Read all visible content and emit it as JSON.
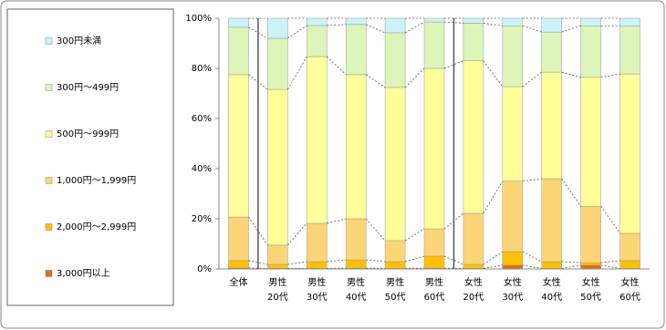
{
  "chart_data": {
    "type": "stacked_bar_100",
    "categories": [
      [
        "全体"
      ],
      [
        "男性",
        "20代"
      ],
      [
        "男性",
        "30代"
      ],
      [
        "男性",
        "40代"
      ],
      [
        "男性",
        "50代"
      ],
      [
        "男性",
        "60代"
      ],
      [
        "女性",
        "20代"
      ],
      [
        "女性",
        "30代"
      ],
      [
        "女性",
        "40代"
      ],
      [
        "女性",
        "50代"
      ],
      [
        "女性",
        "60代"
      ]
    ],
    "series": [
      {
        "name": "3,000円以上",
        "color": "#e46c0a",
        "values": [
          0.4,
          0.2,
          0.2,
          0.3,
          0.2,
          0.3,
          0.2,
          1.5,
          0.2,
          1.5,
          0.2
        ]
      },
      {
        "name": "2,000円～2,999円",
        "color": "#ffc000",
        "values": [
          2.9,
          1.6,
          2.7,
          3.3,
          2.7,
          4.8,
          1.6,
          5.4,
          2.7,
          1.0,
          3.1
        ]
      },
      {
        "name": "1,000円～1,999円",
        "color": "#fcd576",
        "values": [
          17.4,
          7.7,
          15.3,
          16.4,
          8.4,
          10.9,
          20.4,
          28.1,
          33.1,
          22.5,
          10.9
        ]
      },
      {
        "name": "500円～999円",
        "color": "#ffff99",
        "values": [
          56.8,
          62.1,
          66.5,
          57.5,
          61.1,
          64.0,
          60.8,
          37.7,
          42.5,
          51.4,
          63.6
        ]
      },
      {
        "name": "300円～499円",
        "color": "#ddf5b8",
        "values": [
          18.9,
          20.4,
          12.4,
          20.0,
          21.8,
          18.5,
          15.0,
          24.3,
          16.0,
          20.6,
          19.2
        ]
      },
      {
        "name": "300円未満",
        "color": "#ccf2fa",
        "values": [
          3.6,
          8.0,
          2.9,
          2.5,
          5.8,
          1.5,
          2.0,
          3.0,
          5.5,
          3.0,
          3.0
        ]
      }
    ],
    "ylim": [
      0,
      100
    ],
    "yticks": [
      {
        "value": 0,
        "label": "0%"
      },
      {
        "value": 20,
        "label": "20%"
      },
      {
        "value": 40,
        "label": "40%"
      },
      {
        "value": 60,
        "label": "60%"
      },
      {
        "value": 80,
        "label": "80%"
      },
      {
        "value": 100,
        "label": "100%"
      }
    ]
  }
}
